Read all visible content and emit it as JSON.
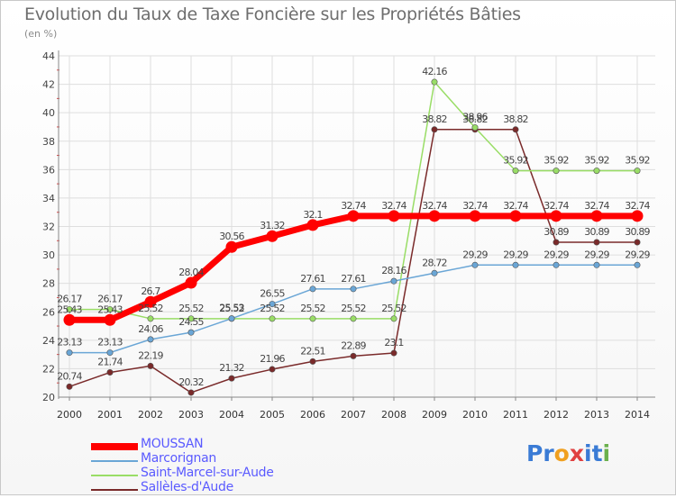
{
  "title": "Evolution du Taux de Taxe Foncière sur les Propriétés Bâties",
  "subtitle": "(en %)",
  "logo": {
    "text": "Proxiti",
    "letters": [
      "P",
      "r",
      "o",
      "x",
      "i",
      "t",
      "i"
    ],
    "colors": [
      "#3a7bd5",
      "#3a7bd5",
      "#f0a020",
      "#e04040",
      "#3a7bd5",
      "#3a7bd5",
      "#6ab04c"
    ]
  },
  "chart_data": {
    "type": "line",
    "title": "Evolution du Taux de Taxe Foncière sur les Propriétés Bâties",
    "ylabel": "(en %)",
    "xlabel": "",
    "categories": [
      "2000",
      "2001",
      "2002",
      "2003",
      "2004",
      "2005",
      "2006",
      "2007",
      "2008",
      "2009",
      "2010",
      "2011",
      "2012",
      "2013",
      "2014"
    ],
    "ylim": [
      20,
      44
    ],
    "yticks": [
      20,
      22,
      24,
      26,
      28,
      30,
      32,
      34,
      36,
      38,
      40,
      42,
      44
    ],
    "grid": true,
    "legend": "bottom-left",
    "series": [
      {
        "name": "MOUSSAN",
        "color": "#ff0000",
        "values": [
          25.43,
          25.43,
          26.7,
          28.04,
          30.56,
          31.32,
          32.1,
          32.74,
          32.74,
          32.74,
          32.74,
          32.74,
          32.74,
          32.74,
          32.74
        ],
        "labels": [
          "25.43",
          "25.43",
          "26.7",
          "28.04",
          "30.56",
          "31.32",
          "32.1",
          "32.74",
          "32.74",
          "32.74",
          "32.74",
          "32.74",
          "32.74",
          "32.74",
          "32.74"
        ]
      },
      {
        "name": "Marcorignan",
        "color": "#6aa6d6",
        "values": [
          23.13,
          23.13,
          24.06,
          24.55,
          25.53,
          26.55,
          27.61,
          27.61,
          28.16,
          28.72,
          29.29,
          29.29,
          29.29,
          29.29,
          29.29
        ],
        "labels": [
          "23.13",
          "23.13",
          "24.06",
          "24.55",
          "25.53",
          "26.55",
          "27.61",
          "27.61",
          "28.16",
          "28.72",
          "29.29",
          "29.29",
          "29.29",
          "29.29",
          "29.29"
        ]
      },
      {
        "name": "Saint-Marcel-sur-Aude",
        "color": "#99dd66",
        "values": [
          26.17,
          26.17,
          25.52,
          25.52,
          25.52,
          25.52,
          25.52,
          25.52,
          25.52,
          42.16,
          38.96,
          35.92,
          35.92,
          35.92,
          35.92
        ],
        "labels": [
          "26.17",
          "26.17",
          "25.52",
          "25.52",
          "25.52",
          "25.52",
          "25.52",
          "25.52",
          "25.52",
          "42.16",
          "38.96",
          "35.92",
          "35.92",
          "35.92",
          "35.92"
        ]
      },
      {
        "name": "Sallèles-d'Aude",
        "color": "#7a2a2a",
        "values": [
          20.74,
          21.74,
          22.19,
          20.32,
          21.32,
          21.96,
          22.51,
          22.89,
          23.1,
          38.82,
          38.82,
          38.82,
          30.89,
          30.89,
          30.89
        ],
        "labels": [
          "20.74",
          "21.74",
          "22.19",
          "20.32",
          "21.32",
          "21.96",
          "22.51",
          "22.89",
          "23.1",
          "38.82",
          "38.82",
          "38.82",
          "30.89",
          "30.89",
          "30.89"
        ]
      }
    ]
  }
}
